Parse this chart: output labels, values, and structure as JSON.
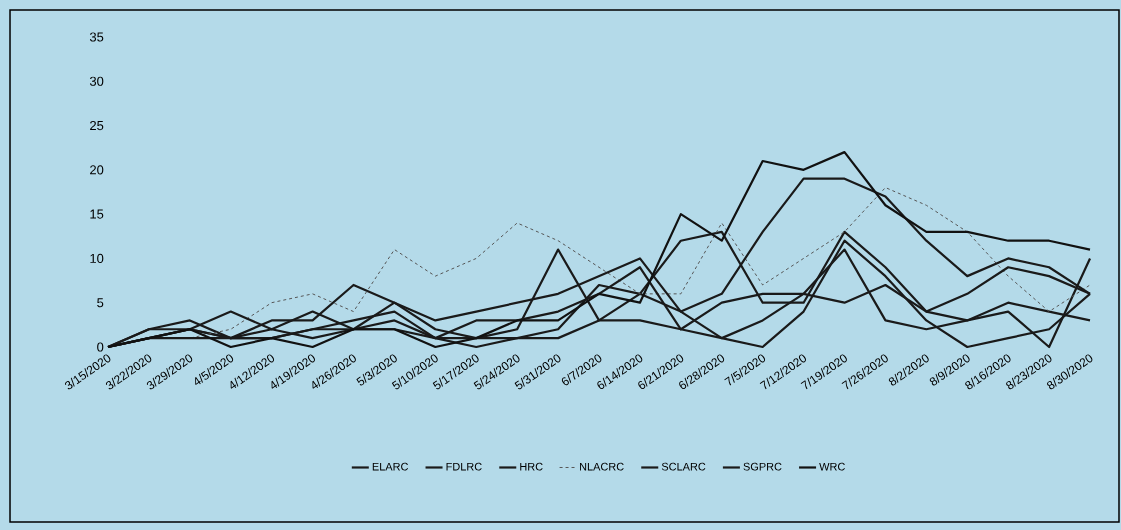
{
  "chart_data": {
    "type": "line",
    "categories": [
      "3/15/2020",
      "3/22/2020",
      "3/29/2020",
      "4/5/2020",
      "4/12/2020",
      "4/19/2020",
      "4/26/2020",
      "5/3/2020",
      "5/10/2020",
      "5/17/2020",
      "5/24/2020",
      "5/31/2020",
      "6/7/2020",
      "6/14/2020",
      "6/21/2020",
      "6/28/2020",
      "7/5/2020",
      "7/12/2020",
      "7/19/2020",
      "7/26/2020",
      "8/2/2020",
      "8/9/2020",
      "8/16/2020",
      "8/23/2020",
      "8/30/2020"
    ],
    "series": [
      {
        "name": "ELARC",
        "color": "#1a1a1a",
        "line_style": "solid",
        "values": [
          0,
          1,
          2,
          1,
          1,
          2,
          2,
          2,
          1,
          0,
          1,
          1,
          3,
          3,
          2,
          1,
          0,
          4,
          12,
          8,
          3,
          0,
          1,
          2,
          6
        ]
      },
      {
        "name": "FDLRC",
        "color": "#1a1a1a",
        "line_style": "solid",
        "values": [
          0,
          2,
          3,
          1,
          3,
          3,
          7,
          5,
          2,
          1,
          1,
          2,
          7,
          6,
          12,
          13,
          5,
          5,
          13,
          9,
          4,
          3,
          4,
          0,
          10
        ]
      },
      {
        "name": "HRC",
        "color": "#1a1a1a",
        "line_style": "solid",
        "values": [
          0,
          1,
          2,
          1,
          2,
          1,
          2,
          3,
          1,
          1,
          2,
          11,
          3,
          6,
          4,
          1,
          3,
          6,
          11,
          3,
          2,
          3,
          5,
          4,
          3
        ]
      },
      {
        "name": "NLACRC",
        "color": "#555555",
        "line_style": "dashed",
        "values": [
          0,
          1,
          1,
          2,
          5,
          6,
          4,
          11,
          8,
          10,
          14,
          12,
          9,
          6,
          6,
          14,
          7,
          10,
          13,
          18,
          16,
          13,
          8,
          4,
          7
        ]
      },
      {
        "name": "SCLARC",
        "color": "#1a1a1a",
        "line_style": "solid",
        "values": [
          0,
          2,
          2,
          4,
          2,
          4,
          2,
          5,
          3,
          4,
          5,
          6,
          8,
          10,
          4,
          6,
          13,
          19,
          19,
          17,
          12,
          8,
          10,
          9,
          6
        ]
      },
      {
        "name": "SGPRC",
        "color": "#1a1a1a",
        "line_style": "solid",
        "values": [
          0,
          1,
          1,
          1,
          1,
          2,
          3,
          4,
          1,
          3,
          3,
          4,
          6,
          9,
          2,
          5,
          6,
          6,
          5,
          7,
          4,
          6,
          9,
          8,
          6
        ]
      },
      {
        "name": "WRC",
        "color": "#111111",
        "line_style": "solid",
        "values": [
          0,
          1,
          2,
          0,
          1,
          0,
          2,
          2,
          0,
          1,
          3,
          3,
          6,
          5,
          15,
          12,
          21,
          20,
          22,
          16,
          13,
          13,
          12,
          12,
          11
        ]
      }
    ],
    "ylim": [
      0,
      35
    ],
    "yticks": [
      0,
      5,
      10,
      15,
      20,
      25,
      30,
      35
    ],
    "legend": "bottom"
  }
}
